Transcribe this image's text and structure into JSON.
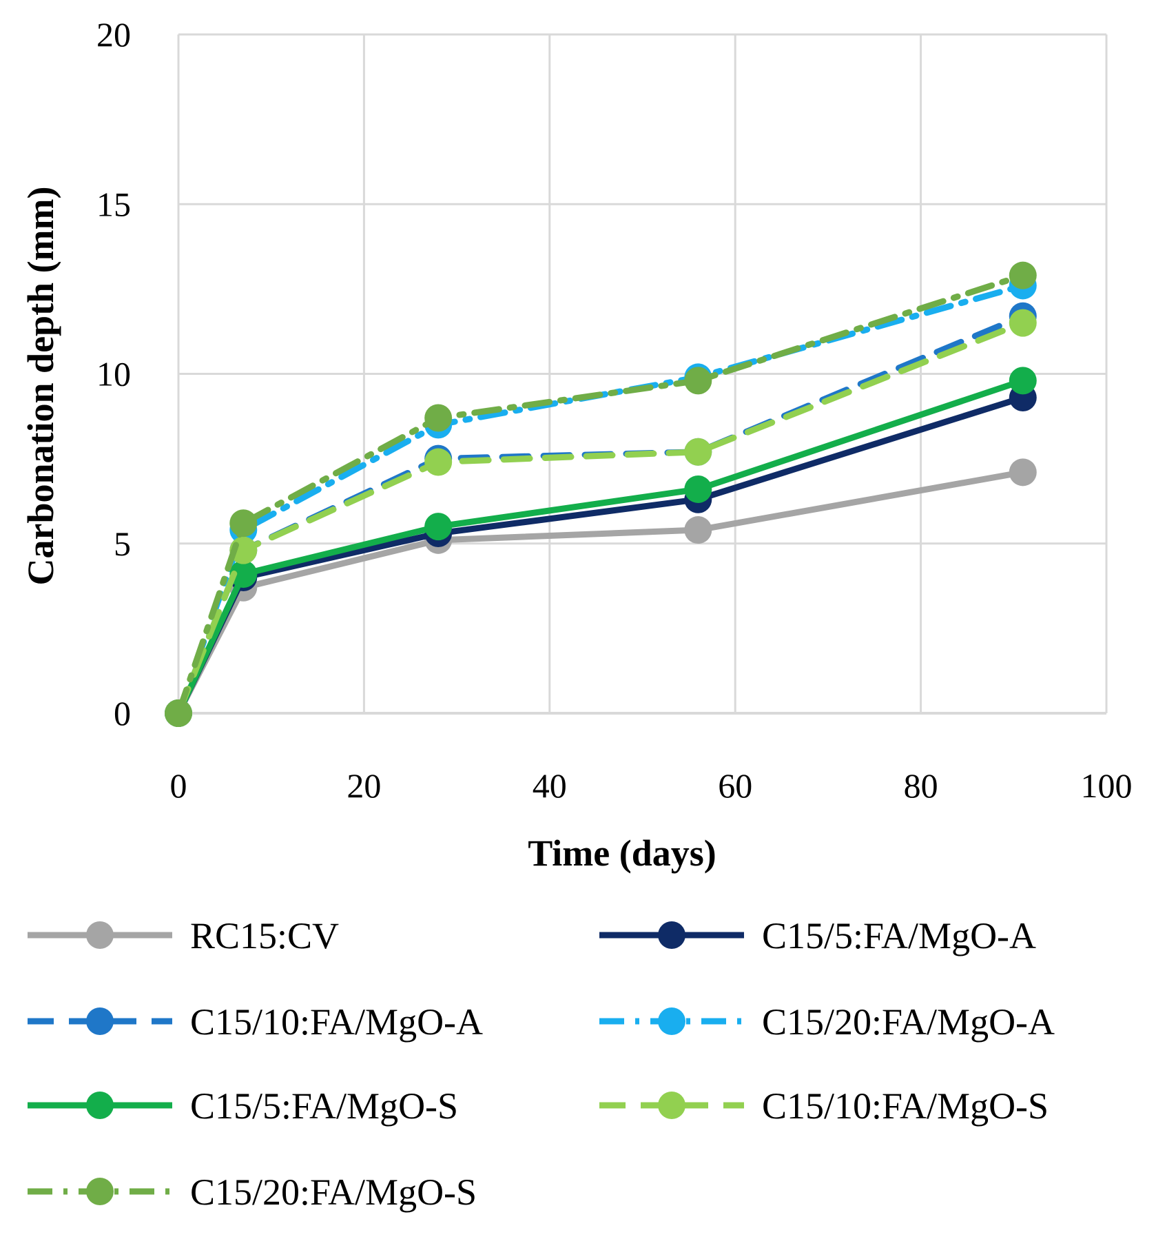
{
  "chart_data": {
    "type": "line",
    "title": "",
    "xlabel": "Time (days)",
    "ylabel": "Carbonation depth (mm)",
    "xlim": [
      0,
      100
    ],
    "ylim": [
      0,
      20
    ],
    "x_ticks": [
      "0",
      "20",
      "40",
      "60",
      "80",
      "100"
    ],
    "y_ticks": [
      "0",
      "5",
      "10",
      "15",
      "20"
    ],
    "grid": true,
    "legend_position": "bottom",
    "x": [
      0,
      7,
      28,
      56,
      91
    ],
    "series": [
      {
        "name": "RC15:CV",
        "values": [
          0,
          3.7,
          5.1,
          5.4,
          7.1
        ],
        "color": "#A5A5A5",
        "dash": "solid"
      },
      {
        "name": "C15/5:FA/MgO-A",
        "values": [
          0,
          4.0,
          5.3,
          6.3,
          9.3
        ],
        "color": "#0F2B66",
        "dash": "solid"
      },
      {
        "name": "C15/10:FA/MgO-A",
        "values": [
          0,
          4.8,
          7.5,
          7.7,
          11.7
        ],
        "color": "#1F77C8",
        "dash": "dashed"
      },
      {
        "name": "C15/20:FA/MgO-A",
        "values": [
          0,
          5.4,
          8.5,
          9.9,
          12.6
        ],
        "color": "#19AEEF",
        "dash": "dashdot"
      },
      {
        "name": "C15/5:FA/MgO-S",
        "values": [
          0,
          4.1,
          5.5,
          6.6,
          9.8
        ],
        "color": "#13AE4B",
        "dash": "solid"
      },
      {
        "name": "C15/10:FA/MgO-S",
        "values": [
          0,
          4.8,
          7.4,
          7.7,
          11.5
        ],
        "color": "#92D050",
        "dash": "dashed"
      },
      {
        "name": "C15/20:FA/MgO-S",
        "values": [
          0,
          5.6,
          8.7,
          9.8,
          12.9
        ],
        "color": "#70AD47",
        "dash": "dashdot"
      }
    ]
  }
}
